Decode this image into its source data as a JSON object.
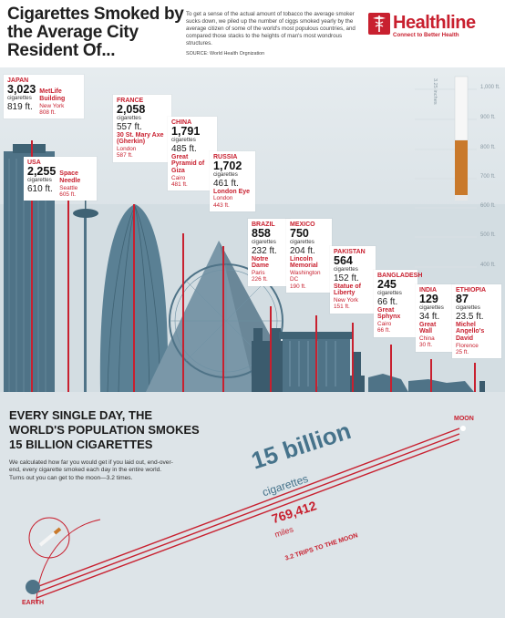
{
  "header": {
    "title": "Cigarettes Smoked by the Average City Resident Of...",
    "intro": "To get a sense of the actual amount of tobacco the average smoker sucks down, we piled up the number of ciggs smoked yearly by the average citizen of some of the world's most populous countries, and compared those stacks to the heights of man's most wondrous structures.",
    "source": "SOURCE: World Health Orgnization",
    "logo_name": "Healthline",
    "logo_tag": "Connect to Better Health"
  },
  "scale": {
    "unit_label": "3.25 inches",
    "ticks": [
      "1,000 ft.",
      "900 ft.",
      "800 ft.",
      "700 ft.",
      "600 ft.",
      "500 ft.",
      "400 ft."
    ]
  },
  "countries": [
    {
      "country": "JAPAN",
      "count": "3,023",
      "cig": "cigarettes",
      "ft": "819 ft.",
      "landmark": "MetLife Building",
      "city": "New York",
      "lft": "808 ft."
    },
    {
      "country": "USA",
      "count": "2,255",
      "cig": "cigarettes",
      "ft": "610 ft.",
      "landmark": "Space Needle",
      "city": "Seattle",
      "lft": "605 ft."
    },
    {
      "country": "FRANCE",
      "count": "2,058",
      "cig": "cigarettes",
      "ft": "557 ft.",
      "landmark": "30 St. Mary Axe (Gherkin)",
      "city": "London",
      "lft": "587 ft."
    },
    {
      "country": "CHINA",
      "count": "1,791",
      "cig": "cigarettes",
      "ft": "485 ft.",
      "landmark": "Great Pyramid of Giza",
      "city": "Cairo",
      "lft": "481 ft."
    },
    {
      "country": "RUSSIA",
      "count": "1,702",
      "cig": "cigarettes",
      "ft": "461 ft.",
      "landmark": "London Eye",
      "city": "London",
      "lft": "443 ft."
    },
    {
      "country": "BRAZIL",
      "count": "858",
      "cig": "cigarettes",
      "ft": "232 ft.",
      "landmark": "Notre Dame",
      "city": "Paris",
      "lft": "226 ft."
    },
    {
      "country": "MEXICO",
      "count": "750",
      "cig": "cigarettes",
      "ft": "204 ft.",
      "landmark": "Lincoln Memorial",
      "city": "Washington DC",
      "lft": "190 ft."
    },
    {
      "country": "PAKISTAN",
      "count": "564",
      "cig": "cigarettes",
      "ft": "152 ft.",
      "landmark": "Statue of Liberty",
      "city": "New York",
      "lft": "151 ft."
    },
    {
      "country": "BANGLADESH",
      "count": "245",
      "cig": "cigarettes",
      "ft": "66 ft.",
      "landmark": "Great Sphynx",
      "city": "Cairo",
      "lft": "66 ft."
    },
    {
      "country": "INDIA",
      "count": "129",
      "cig": "cigarettes",
      "ft": "34 ft.",
      "landmark": "Great Wall",
      "city": "China",
      "lft": "30 ft."
    },
    {
      "country": "ETHIOPIA",
      "count": "87",
      "cig": "cigarettes",
      "ft": "23.5 ft.",
      "landmark": "Michel Angello's David",
      "city": "Florence",
      "lft": "25 ft."
    }
  ],
  "daily": {
    "headline": "EVERY SINGLE DAY, THE WORLD'S POPULATION SMOKES 15 BILLION CIGARETTES",
    "explain": "We calculated how far you would get if you laid out, end-over-end, every cigarette smoked each day in the entire world. Turns out you can get to the moon—3.2 times.",
    "big_number": "15 billion",
    "big_unit": "cigarettes",
    "miles_number": "769,412",
    "miles_unit": "miles",
    "trips": "3.2 TRIPS TO THE MOON",
    "moon": "MOON",
    "earth": "EARTH"
  },
  "colors": {
    "accent": "#c8202f",
    "building": "#4f7387",
    "building_dark": "#3b5b6d",
    "sky": "#e6ecef"
  }
}
